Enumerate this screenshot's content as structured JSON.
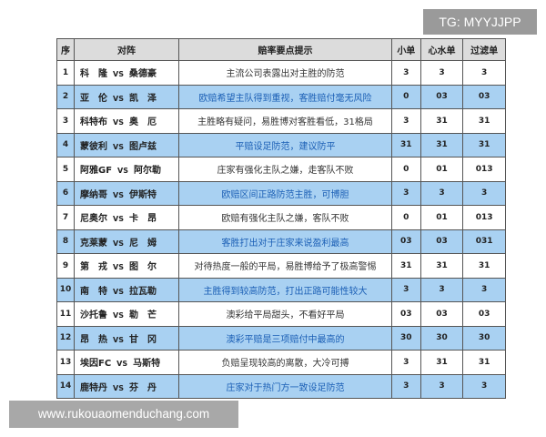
{
  "watermarks": {
    "top": "TG: MYYJJPP",
    "bottom": "www.rukouaomenduchang.com"
  },
  "headers": [
    "序",
    "对阵",
    "赔率要点提示",
    "小单",
    "心水单",
    "过滤单"
  ],
  "vs": "VS",
  "colors": {
    "row_highlight": "#a9d1f2",
    "header_bg": "#dcdcdc",
    "tip_highlight_text": "#1b5fb5"
  },
  "rows": [
    {
      "no": "1",
      "home": "科　隆",
      "away": "桑德豪",
      "tip": "主流公司表露出对主胜的防范",
      "small": "3",
      "heart": "3",
      "filter": "3"
    },
    {
      "no": "2",
      "home": "亚　伦",
      "away": "凯　泽",
      "tip": "欧赔希望主队得到重视，客胜赔付毫无风险",
      "small": "0",
      "heart": "03",
      "filter": "03"
    },
    {
      "no": "3",
      "home": "科特布",
      "away": "奥　厄",
      "tip": "主胜略有疑问，易胜博对客胜看低，31格局",
      "small": "3",
      "heart": "31",
      "filter": "31"
    },
    {
      "no": "4",
      "home": "蒙彼利",
      "away": "图卢兹",
      "tip": "平赔设足防范，建议防平",
      "small": "31",
      "heart": "31",
      "filter": "31"
    },
    {
      "no": "5",
      "home": "阿雅GF",
      "away": "阿尔勒",
      "tip": "庄家有强化主队之嫌，走客队不败",
      "small": "0",
      "heart": "01",
      "filter": "013"
    },
    {
      "no": "6",
      "home": "摩纳哥",
      "away": "伊斯特",
      "tip": "欧赔区间正路防范主胜，可博胆",
      "small": "3",
      "heart": "3",
      "filter": "3"
    },
    {
      "no": "7",
      "home": "尼奥尔",
      "away": "卡　昂",
      "tip": "欧赔有强化主队之嫌，客队不败",
      "small": "0",
      "heart": "01",
      "filter": "013"
    },
    {
      "no": "8",
      "home": "克莱蒙",
      "away": "尼　姆",
      "tip": "客胜打出对于庄家来说盈利最高",
      "small": "03",
      "heart": "03",
      "filter": "031"
    },
    {
      "no": "9",
      "home": "第　戎",
      "away": "图　尔",
      "tip": "对待热度一般的平局，易胜博给予了极高警惕",
      "small": "31",
      "heart": "31",
      "filter": "31"
    },
    {
      "no": "10",
      "home": "南　特",
      "away": "拉瓦勒",
      "tip": "主胜得到较高防范，打出正路可能性较大",
      "small": "3",
      "heart": "3",
      "filter": "3"
    },
    {
      "no": "11",
      "home": "沙托鲁",
      "away": "勒　芒",
      "tip": "澳彩给平局甜头，不看好平局",
      "small": "03",
      "heart": "03",
      "filter": "03"
    },
    {
      "no": "12",
      "home": "昂　热",
      "away": "甘　冈",
      "tip": "澳彩平赔是三项赔付中最高的",
      "small": "30",
      "heart": "30",
      "filter": "30"
    },
    {
      "no": "13",
      "home": "埃因FC",
      "away": "马斯特",
      "tip": "负赔呈现较高的离散，大冷可搏",
      "small": "3",
      "heart": "31",
      "filter": "31"
    },
    {
      "no": "14",
      "home": "鹿特丹",
      "away": "芬　丹",
      "tip": "庄家对于热门方一致设足防范",
      "small": "3",
      "heart": "3",
      "filter": "3"
    }
  ]
}
